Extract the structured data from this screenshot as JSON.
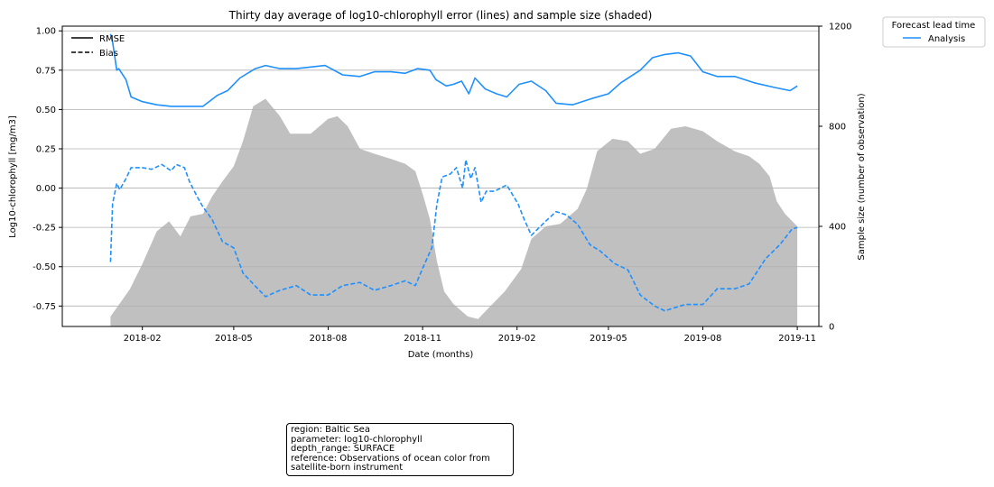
{
  "chart_data": {
    "type": "line",
    "title": "Thirty day average of log10-chlorophyll error (lines) and sample size (shaded)",
    "xlabel": "Date (months)",
    "ylabel_left": "Log10-chlorophyll [mg/m3]",
    "ylabel_right": "Sample size (number of observation)",
    "x_range": [
      "2017-11-15",
      "2019-11-22"
    ],
    "ylim_left": [
      -0.88,
      1.03
    ],
    "ylim_right": [
      0,
      1200
    ],
    "x_ticks": [
      "2018-02",
      "2018-05",
      "2018-08",
      "2018-11",
      "2019-02",
      "2019-05",
      "2019-08",
      "2019-11"
    ],
    "y_ticks_left": [
      "1.00",
      "0.75",
      "0.50",
      "0.25",
      "0.00",
      "-0.25",
      "-0.50",
      "-0.75"
    ],
    "y_ticks_right": [
      "1200",
      "800",
      "400",
      "0"
    ],
    "grid": "horizontal (left axis)",
    "style_legend": {
      "position": "top-left",
      "entries": [
        {
          "label": "RMSE",
          "style": "solid"
        },
        {
          "label": "Bias",
          "style": "dashed"
        }
      ]
    },
    "series_legend": {
      "title": "Forecast lead time",
      "position": "outside top-right",
      "entries": [
        {
          "label": "Analysis",
          "color": "#1e90ff"
        }
      ]
    },
    "series": [
      {
        "name": "Analysis",
        "metric": "RMSE",
        "color": "#1e90ff",
        "axis": "left",
        "points": [
          [
            "2018-01-01",
            0.98
          ],
          [
            "2018-01-03",
            0.93
          ],
          [
            "2018-01-07",
            0.75
          ],
          [
            "2018-01-09",
            0.76
          ],
          [
            "2018-01-16",
            0.69
          ],
          [
            "2018-01-21",
            0.58
          ],
          [
            "2018-02-01",
            0.55
          ],
          [
            "2018-02-15",
            0.53
          ],
          [
            "2018-03-01",
            0.52
          ],
          [
            "2018-04-01",
            0.52
          ],
          [
            "2018-04-15",
            0.59
          ],
          [
            "2018-04-25",
            0.62
          ],
          [
            "2018-05-07",
            0.7
          ],
          [
            "2018-05-22",
            0.76
          ],
          [
            "2018-06-01",
            0.78
          ],
          [
            "2018-06-15",
            0.76
          ],
          [
            "2018-07-01",
            0.76
          ],
          [
            "2018-07-15",
            0.77
          ],
          [
            "2018-07-29",
            0.78
          ],
          [
            "2018-08-15",
            0.72
          ],
          [
            "2018-09-01",
            0.71
          ],
          [
            "2018-09-15",
            0.74
          ],
          [
            "2018-10-01",
            0.74
          ],
          [
            "2018-10-15",
            0.73
          ],
          [
            "2018-10-27",
            0.76
          ],
          [
            "2018-11-08",
            0.75
          ],
          [
            "2018-11-14",
            0.69
          ],
          [
            "2018-11-24",
            0.65
          ],
          [
            "2018-12-01",
            0.66
          ],
          [
            "2018-12-09",
            0.68
          ],
          [
            "2018-12-16",
            0.6
          ],
          [
            "2018-12-22",
            0.7
          ],
          [
            "2019-01-01",
            0.63
          ],
          [
            "2019-01-12",
            0.6
          ],
          [
            "2019-01-22",
            0.58
          ],
          [
            "2019-02-03",
            0.66
          ],
          [
            "2019-02-15",
            0.68
          ],
          [
            "2019-03-01",
            0.62
          ],
          [
            "2019-03-11",
            0.54
          ],
          [
            "2019-03-27",
            0.53
          ],
          [
            "2019-04-15",
            0.57
          ],
          [
            "2019-05-01",
            0.6
          ],
          [
            "2019-05-13",
            0.67
          ],
          [
            "2019-06-01",
            0.75
          ],
          [
            "2019-06-13",
            0.83
          ],
          [
            "2019-06-25",
            0.85
          ],
          [
            "2019-07-08",
            0.86
          ],
          [
            "2019-07-20",
            0.84
          ],
          [
            "2019-08-01",
            0.74
          ],
          [
            "2019-08-15",
            0.71
          ],
          [
            "2019-09-01",
            0.71
          ],
          [
            "2019-09-20",
            0.67
          ],
          [
            "2019-10-10",
            0.64
          ],
          [
            "2019-10-25",
            0.62
          ],
          [
            "2019-11-01",
            0.65
          ]
        ]
      },
      {
        "name": "Analysis",
        "metric": "Bias",
        "color": "#1e90ff",
        "axis": "left",
        "points": [
          [
            "2018-01-01",
            -0.47
          ],
          [
            "2018-01-03",
            -0.1
          ],
          [
            "2018-01-07",
            0.03
          ],
          [
            "2018-01-10",
            -0.01
          ],
          [
            "2018-01-16",
            0.06
          ],
          [
            "2018-01-21",
            0.13
          ],
          [
            "2018-02-01",
            0.13
          ],
          [
            "2018-02-10",
            0.12
          ],
          [
            "2018-02-20",
            0.15
          ],
          [
            "2018-03-01",
            0.11
          ],
          [
            "2018-03-06",
            0.15
          ],
          [
            "2018-03-14",
            0.13
          ],
          [
            "2018-03-19",
            0.04
          ],
          [
            "2018-03-26",
            -0.05
          ],
          [
            "2018-04-01",
            -0.12
          ],
          [
            "2018-04-10",
            -0.2
          ],
          [
            "2018-04-20",
            -0.34
          ],
          [
            "2018-05-01",
            -0.38
          ],
          [
            "2018-05-10",
            -0.54
          ],
          [
            "2018-05-20",
            -0.61
          ],
          [
            "2018-06-01",
            -0.69
          ],
          [
            "2018-06-15",
            -0.65
          ],
          [
            "2018-07-01",
            -0.62
          ],
          [
            "2018-07-15",
            -0.68
          ],
          [
            "2018-08-01",
            -0.68
          ],
          [
            "2018-08-15",
            -0.62
          ],
          [
            "2018-09-01",
            -0.6
          ],
          [
            "2018-09-15",
            -0.65
          ],
          [
            "2018-10-01",
            -0.62
          ],
          [
            "2018-10-15",
            -0.59
          ],
          [
            "2018-10-25",
            -0.62
          ],
          [
            "2018-11-01",
            -0.51
          ],
          [
            "2018-11-10",
            -0.38
          ],
          [
            "2018-11-15",
            -0.1
          ],
          [
            "2018-11-20",
            0.07
          ],
          [
            "2018-11-28",
            0.09
          ],
          [
            "2018-12-04",
            0.13
          ],
          [
            "2018-12-10",
            0.0
          ],
          [
            "2018-12-13",
            0.18
          ],
          [
            "2018-12-18",
            0.06
          ],
          [
            "2018-12-22",
            0.13
          ],
          [
            "2018-12-28",
            -0.09
          ],
          [
            "2019-01-02",
            -0.02
          ],
          [
            "2019-01-10",
            -0.02
          ],
          [
            "2019-01-22",
            0.02
          ],
          [
            "2019-02-02",
            -0.1
          ],
          [
            "2019-02-08",
            -0.2
          ],
          [
            "2019-02-15",
            -0.3
          ],
          [
            "2019-03-01",
            -0.21
          ],
          [
            "2019-03-11",
            -0.15
          ],
          [
            "2019-03-21",
            -0.17
          ],
          [
            "2019-04-01",
            -0.23
          ],
          [
            "2019-04-13",
            -0.36
          ],
          [
            "2019-04-23",
            -0.4
          ],
          [
            "2019-05-07",
            -0.48
          ],
          [
            "2019-05-20",
            -0.52
          ],
          [
            "2019-06-01",
            -0.68
          ],
          [
            "2019-06-15",
            -0.75
          ],
          [
            "2019-06-25",
            -0.78
          ],
          [
            "2019-07-15",
            -0.74
          ],
          [
            "2019-08-01",
            -0.74
          ],
          [
            "2019-08-15",
            -0.64
          ],
          [
            "2019-09-01",
            -0.64
          ],
          [
            "2019-09-15",
            -0.61
          ],
          [
            "2019-10-01",
            -0.45
          ],
          [
            "2019-10-15",
            -0.36
          ],
          [
            "2019-10-27",
            -0.26
          ],
          [
            "2019-11-01",
            -0.25
          ]
        ]
      },
      {
        "name": "Sample size",
        "metric": "Sample size",
        "type": "area",
        "color": "#c0c0c0",
        "axis": "right",
        "points": [
          [
            "2018-01-01",
            40
          ],
          [
            "2018-01-08",
            80
          ],
          [
            "2018-01-20",
            150
          ],
          [
            "2018-02-01",
            250
          ],
          [
            "2018-02-15",
            380
          ],
          [
            "2018-02-27",
            420
          ],
          [
            "2018-03-10",
            360
          ],
          [
            "2018-03-20",
            440
          ],
          [
            "2018-04-01",
            450
          ],
          [
            "2018-04-10",
            520
          ],
          [
            "2018-04-20",
            580
          ],
          [
            "2018-05-01",
            640
          ],
          [
            "2018-05-10",
            740
          ],
          [
            "2018-05-20",
            880
          ],
          [
            "2018-06-01",
            910
          ],
          [
            "2018-06-15",
            840
          ],
          [
            "2018-06-25",
            770
          ],
          [
            "2018-07-15",
            770
          ],
          [
            "2018-08-01",
            830
          ],
          [
            "2018-08-10",
            840
          ],
          [
            "2018-08-20",
            800
          ],
          [
            "2018-09-01",
            710
          ],
          [
            "2018-09-15",
            690
          ],
          [
            "2018-10-01",
            670
          ],
          [
            "2018-10-15",
            650
          ],
          [
            "2018-10-25",
            620
          ],
          [
            "2018-11-01",
            530
          ],
          [
            "2018-11-08",
            430
          ],
          [
            "2018-11-15",
            260
          ],
          [
            "2018-11-22",
            140
          ],
          [
            "2018-12-01",
            90
          ],
          [
            "2018-12-15",
            40
          ],
          [
            "2018-12-25",
            30
          ],
          [
            "2019-01-01",
            60
          ],
          [
            "2019-01-20",
            140
          ],
          [
            "2019-02-05",
            230
          ],
          [
            "2019-02-15",
            350
          ],
          [
            "2019-03-01",
            400
          ],
          [
            "2019-03-15",
            410
          ],
          [
            "2019-04-01",
            470
          ],
          [
            "2019-04-10",
            550
          ],
          [
            "2019-04-20",
            700
          ],
          [
            "2019-05-05",
            750
          ],
          [
            "2019-05-20",
            740
          ],
          [
            "2019-06-01",
            690
          ],
          [
            "2019-06-15",
            710
          ],
          [
            "2019-07-01",
            790
          ],
          [
            "2019-07-15",
            800
          ],
          [
            "2019-08-01",
            780
          ],
          [
            "2019-08-15",
            740
          ],
          [
            "2019-09-01",
            700
          ],
          [
            "2019-09-15",
            680
          ],
          [
            "2019-09-25",
            650
          ],
          [
            "2019-10-05",
            600
          ],
          [
            "2019-10-12",
            500
          ],
          [
            "2019-10-20",
            450
          ],
          [
            "2019-11-01",
            400
          ]
        ]
      }
    ]
  },
  "info_box": {
    "region": "region: Baltic Sea",
    "parameter": "parameter: log10-chlorophyll",
    "depth_range": "depth_range: SURFACE",
    "reference": "reference: Observations of ocean color from satellite-born instrument"
  }
}
